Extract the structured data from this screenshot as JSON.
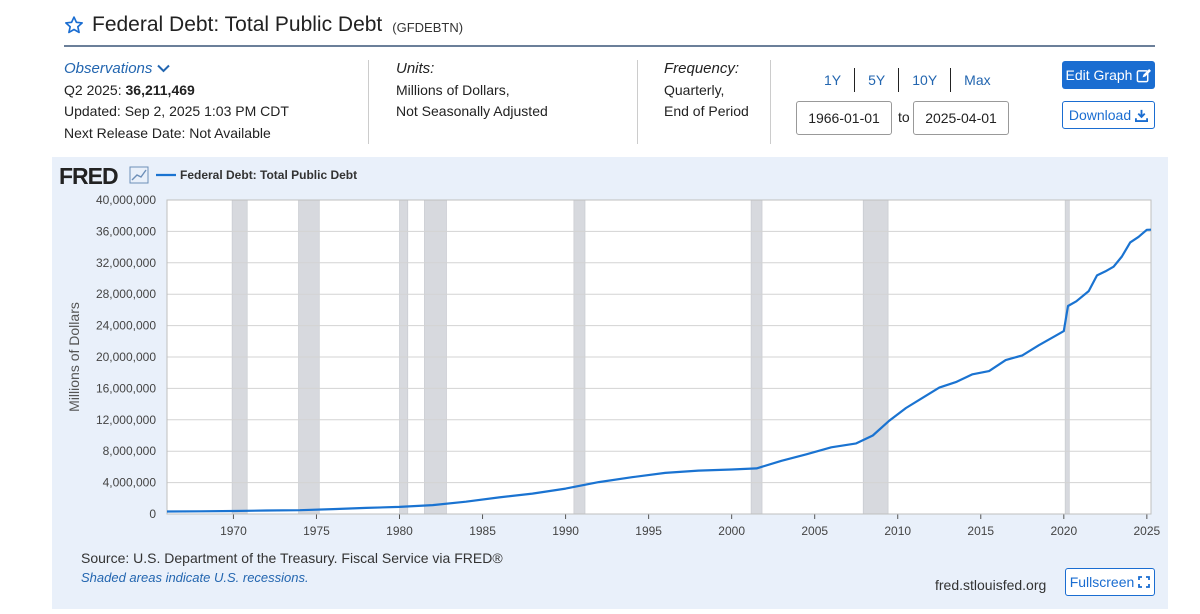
{
  "header": {
    "title": "Federal Debt: Total Public Debt",
    "series_id": "(GFDEBTN)"
  },
  "observations": {
    "link_label": "Observations",
    "latest_prefix": "Q2 2025: ",
    "latest_value": "36,211,469",
    "updated": "Updated: Sep 2, 2025 1:03 PM CDT",
    "next_release": "Next Release Date: Not Available"
  },
  "units": {
    "label": "Units:",
    "line1": "Millions of Dollars,",
    "line2": "Not Seasonally Adjusted"
  },
  "frequency": {
    "label": "Frequency:",
    "line1": "Quarterly,",
    "line2": "End of Period"
  },
  "ranges": [
    "1Y",
    "5Y",
    "10Y",
    "Max"
  ],
  "date_range": {
    "start": "1966-01-01",
    "to": "to",
    "end": "2025-04-01"
  },
  "buttons": {
    "edit": "Edit Graph",
    "download": "Download",
    "fullscreen": "Fullscreen"
  },
  "footer": {
    "source": "Source: U.S. Department of the Treasury. Fiscal Service via FRED®",
    "recession_note": "Shaded areas indicate U.S. recessions.",
    "site": "fred.stlouisfed.org"
  },
  "colors": {
    "line": "#1a73d1",
    "recession": "#d7d9de",
    "accent": "#1a6dd1"
  },
  "chart_data": {
    "type": "line",
    "logo": "FRED",
    "legend_position": "top-left",
    "grid": true,
    "ylabel": "Millions of Dollars",
    "ylim": [
      0,
      40000000
    ],
    "xlim": [
      1966.0,
      2025.25
    ],
    "y_ticks": [
      0,
      4000000,
      8000000,
      12000000,
      16000000,
      20000000,
      24000000,
      28000000,
      32000000,
      36000000,
      40000000
    ],
    "y_tick_labels": [
      "0",
      "4,000,000",
      "8,000,000",
      "12,000,000",
      "16,000,000",
      "20,000,000",
      "24,000,000",
      "28,000,000",
      "32,000,000",
      "36,000,000",
      "40,000,000"
    ],
    "x_ticks": [
      1970,
      1975,
      1980,
      1985,
      1990,
      1995,
      2000,
      2005,
      2010,
      2015,
      2020,
      2025
    ],
    "recessions": [
      [
        1969.92,
        1970.83
      ],
      [
        1973.92,
        1975.17
      ],
      [
        1980.0,
        1980.5
      ],
      [
        1981.5,
        1982.83
      ],
      [
        1990.5,
        1991.17
      ],
      [
        2001.17,
        2001.83
      ],
      [
        2007.92,
        2009.42
      ],
      [
        2020.08,
        2020.33
      ]
    ],
    "series": [
      {
        "name": "Federal Debt: Total Public Debt",
        "x": [
          1966.0,
          1968.0,
          1970.0,
          1972.0,
          1974.0,
          1976.0,
          1978.0,
          1980.0,
          1982.0,
          1984.0,
          1986.0,
          1988.0,
          1990.0,
          1992.0,
          1994.0,
          1996.0,
          1998.0,
          2000.0,
          2001.5,
          2003.0,
          2004.5,
          2006.0,
          2007.5,
          2008.5,
          2009.5,
          2010.5,
          2011.5,
          2012.5,
          2013.5,
          2014.5,
          2015.5,
          2016.5,
          2017.5,
          2018.5,
          2019.5,
          2020.0,
          2020.25,
          2020.75,
          2021.5,
          2022.0,
          2022.5,
          2023.0,
          2023.5,
          2024.0,
          2024.5,
          2025.0,
          2025.25
        ],
        "values": [
          320000,
          350000,
          380000,
          440000,
          480000,
          630000,
          780000,
          910000,
          1140000,
          1570000,
          2120000,
          2600000,
          3230000,
          4060000,
          4690000,
          5230000,
          5530000,
          5670000,
          5810000,
          6780000,
          7600000,
          8500000,
          9000000,
          10000000,
          11900000,
          13500000,
          14800000,
          16100000,
          16800000,
          17800000,
          18200000,
          19600000,
          20200000,
          21500000,
          22700000,
          23300000,
          26500000,
          27100000,
          28400000,
          30400000,
          30900000,
          31500000,
          32800000,
          34600000,
          35300000,
          36200000,
          36211469
        ]
      }
    ]
  }
}
